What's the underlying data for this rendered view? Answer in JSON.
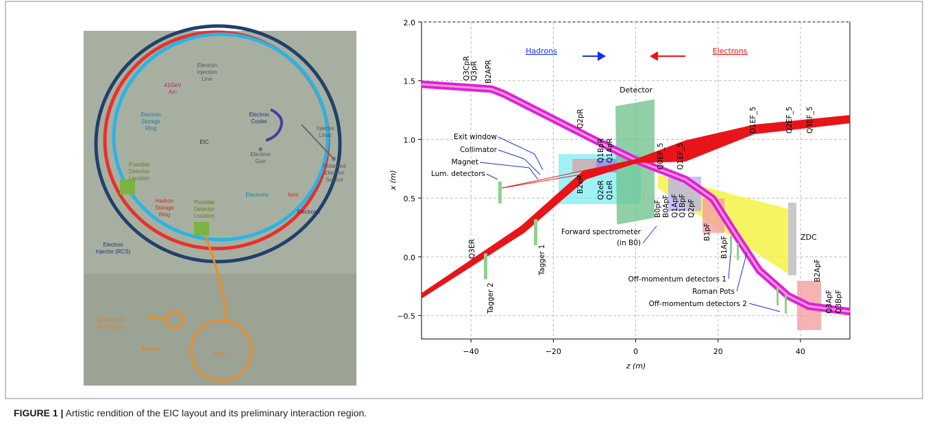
{
  "figure": {
    "caption_label": "FIGURE 1 |",
    "caption": "Artistic rendition of the EIC layout and its preliminary interaction region."
  },
  "left_panel": {
    "labels": [
      [
        "41GeV",
        "Arc"
      ],
      [
        "Electron",
        "Injection",
        "Line"
      ],
      [
        "Electron",
        "Storage",
        "Ring"
      ],
      [
        "EIC"
      ],
      [
        "Electron",
        "Cooler"
      ],
      [
        "Electron",
        "Gun"
      ],
      [
        "Injector",
        "Linac"
      ],
      [
        "Polarized",
        "Electron",
        "Source"
      ],
      [
        "Possible",
        "Detector",
        "Location"
      ],
      [
        "Hadron",
        "Storage",
        "Ring"
      ],
      [
        "Possible",
        "Detector",
        "Location"
      ],
      [
        "Electrons"
      ],
      [
        "Ions"
      ],
      [
        "Electrons"
      ],
      [
        "Electron",
        "Injector (RCS)"
      ],
      [
        "(Polarized)",
        "Ion Source"
      ],
      [
        "Booster"
      ],
      [
        "AGS"
      ]
    ]
  },
  "right_panel": {
    "xlabel": "z (m)",
    "ylabel": "x (m)",
    "xlim": [
      -52,
      52
    ],
    "ylim": [
      -0.7,
      2.0
    ],
    "xticks": [
      {
        "value": -40,
        "label": "−40"
      },
      {
        "value": -20,
        "label": "−20"
      },
      0,
      20,
      40
    ],
    "yticks": [
      {
        "value": 2,
        "label": "2.0"
      },
      {
        "value": 1.5,
        "label": "1.5"
      },
      {
        "value": 1,
        "label": "1.0"
      },
      {
        "value": 0.5,
        "label": "0.5"
      },
      {
        "value": 0,
        "label": "0.0"
      },
      {
        "value": -0.5,
        "label": "−0.5"
      }
    ],
    "grid": true,
    "arrows": {
      "hadrons": "Hadrons",
      "electrons": "Electrons"
    },
    "detector": "Detector",
    "zdc": "ZDC",
    "spectrometer": [
      "Forward spectrometer",
      "(in B0)"
    ],
    "magnets_top": [
      "Q3CpR",
      "Q3pR",
      "B2APR",
      "Q2pR",
      "Q1BpR",
      "Q1ApR",
      "Q0EF_5",
      "Q1EF_5",
      "D1EF_5",
      "Q2EF_5",
      "Q3EF_5"
    ],
    "magnets_bottom": [
      "B2eR",
      "Q2eR",
      "Q1eR",
      "B0pF",
      "B0ApF",
      "Q1ApF",
      "Q1BpF",
      "Q2pF",
      "B1pF",
      "B1ApF",
      "Q3ER",
      "Tagger 2",
      "Tagger 1",
      "B2ApF",
      "Q3ApF",
      "Q3BpF"
    ],
    "callouts": [
      "Exit window",
      "Collimator",
      "Magnet",
      "Lum. detectors",
      "Off-momentum detectors 1",
      "Roman Pots",
      "Off-momentum detectors 2"
    ]
  }
}
